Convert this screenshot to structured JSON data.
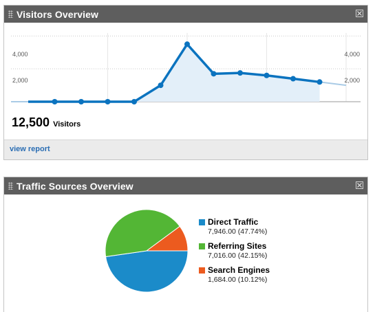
{
  "visitors": {
    "title": "Visitors Overview",
    "total": "12,500",
    "total_label": "Visitors",
    "link": "view report",
    "close_icon": "close-icon",
    "chart_data": {
      "type": "area",
      "y_ticks_left": [
        "4,000",
        "2,000"
      ],
      "y_ticks_right": [
        "4,000",
        "2,000"
      ],
      "ylim": [
        0,
        4600
      ],
      "values": [
        0,
        0,
        0,
        0,
        0,
        1000,
        3500,
        1700,
        1750,
        1600,
        1400,
        1200,
        1000
      ],
      "grid": true,
      "colors": {
        "line": "#0b73bf",
        "fill": "#e3eff9",
        "dot": "#0b73bf",
        "tail": "#a9cbe6"
      }
    }
  },
  "traffic": {
    "title": "Traffic Sources Overview",
    "close_icon": "close-icon",
    "chart_data": {
      "type": "pie",
      "slices": [
        {
          "name": "Direct Traffic",
          "value": 7946.0,
          "value_text": "7,946.00 (47.74%)",
          "color": "#1b8bc9"
        },
        {
          "name": "Referring Sites",
          "value": 7016.0,
          "value_text": "7,016.00 (42.15%)",
          "color": "#53b635"
        },
        {
          "name": "Search Engines",
          "value": 1684.0,
          "value_text": "1,684.00 (10.12%)",
          "color": "#ec5b1f"
        }
      ]
    }
  }
}
